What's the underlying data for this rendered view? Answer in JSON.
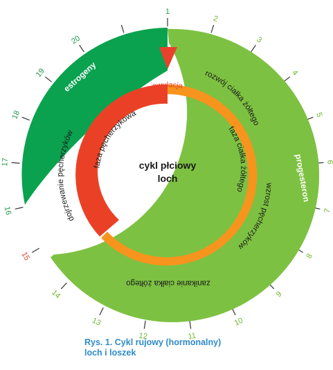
{
  "colors": {
    "estrogen_green": "#0aa24f",
    "progesterone_green": "#7dc142",
    "follicular_red": "#ea4126",
    "luteal_orange": "#f7941d",
    "caption_blue": "#2e8bc9"
  },
  "center": {
    "line1": "cykl płciowy",
    "line2": "loch"
  },
  "phases": {
    "follicular": "faza pęcherzykowa",
    "luteal": "faza ciałka żółtego",
    "ovulation": "owulacja"
  },
  "outer_labels": {
    "estrogens": "estrogeny",
    "progesterone": "progesteron",
    "luteal_development": "rozwój ciałka żółtego",
    "follicle_growth": "wzrost pęcherzyków",
    "luteal_regression": "zanikanie ciałka żółtego",
    "follicle_maturation": "dojrzewanie pęcherzyków"
  },
  "days": [
    "1",
    "2",
    "3",
    "4",
    "5",
    "6",
    "7",
    "8",
    "9",
    "10",
    "11",
    "12",
    "13",
    "14",
    "15",
    "16",
    "17",
    "18",
    "19",
    "20"
  ],
  "caption": {
    "line1": "Rys. 1. Cykl rujowy (hormonalny)",
    "line2": "loch i loszek"
  }
}
